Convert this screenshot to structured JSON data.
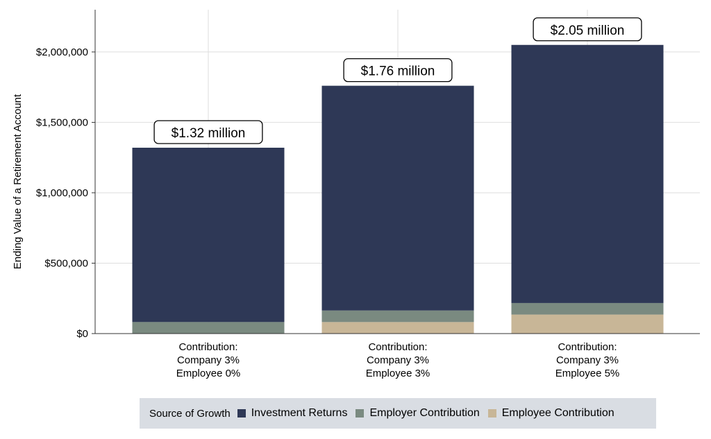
{
  "chart_data": {
    "type": "bar",
    "stacked": true,
    "categories": [
      [
        "Contribution:",
        "Company 3%",
        "Employee 0%"
      ],
      [
        "Contribution:",
        "Company 3%",
        "Employee 3%"
      ],
      [
        "Contribution:",
        "Company 3%",
        "Employee 5%"
      ]
    ],
    "series": [
      {
        "name": "Employee Contribution",
        "color": "#c8b697",
        "values": [
          0,
          82000,
          135000
        ]
      },
      {
        "name": "Employer Contribution",
        "color": "#7a8a80",
        "values": [
          82000,
          82000,
          82000
        ]
      },
      {
        "name": "Investment Returns",
        "color": "#2e3856",
        "values": [
          1238000,
          1596000,
          1833000
        ]
      }
    ],
    "totals_labels": [
      "$1.32 million",
      "$1.76 million",
      "$2.05 million"
    ],
    "ylabel": "Ending Value of a Retirement Account",
    "xlabel": "",
    "ylim": [
      0,
      2300000
    ],
    "yticks": [
      0,
      500000,
      1000000,
      1500000,
      2000000
    ],
    "ytick_labels": [
      "$0",
      "$500,000",
      "$1,000,000",
      "$1,500,000",
      "$2,000,000"
    ],
    "grid": true,
    "legend": {
      "title": "Source of Growth",
      "position": "bottom",
      "order": [
        "Investment Returns",
        "Employer Contribution",
        "Employee Contribution"
      ]
    }
  }
}
